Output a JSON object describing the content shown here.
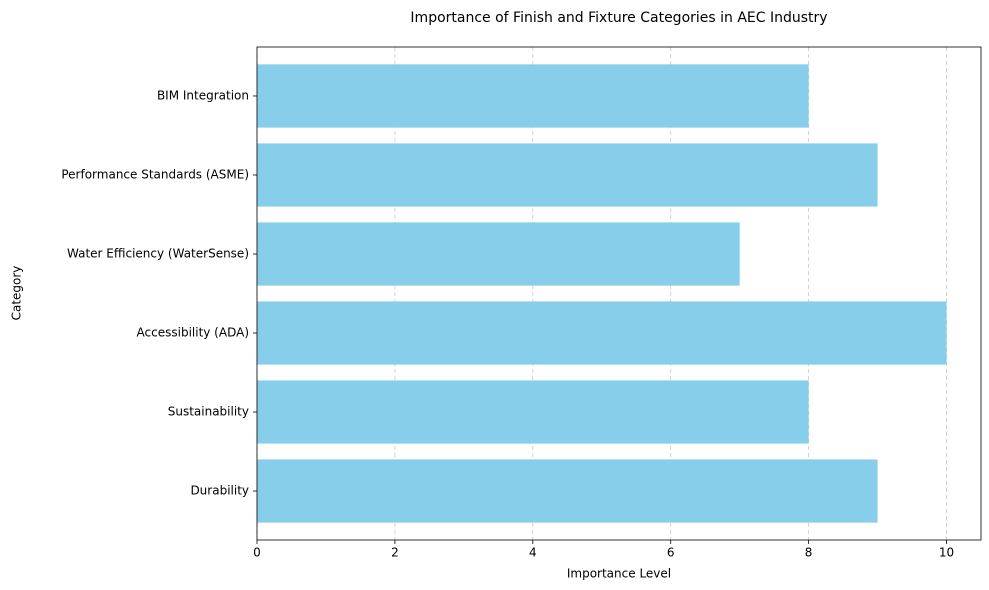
{
  "chart_data": {
    "type": "barh",
    "title": "Importance of Finish and Fixture Categories in AEC Industry",
    "xlabel": "Importance Level",
    "ylabel": "Category",
    "categories": [
      "Durability",
      "Sustainability",
      "Accessibility (ADA)",
      "Water Efficiency (WaterSense)",
      "Performance Standards (ASME)",
      "BIM Integration"
    ],
    "values": [
      9,
      8,
      10,
      7,
      9,
      8
    ],
    "color": "#87ceeb",
    "xlim": [
      0,
      10.5
    ],
    "xticks": [
      0,
      2,
      4,
      6,
      8,
      10
    ],
    "grid": true
  }
}
